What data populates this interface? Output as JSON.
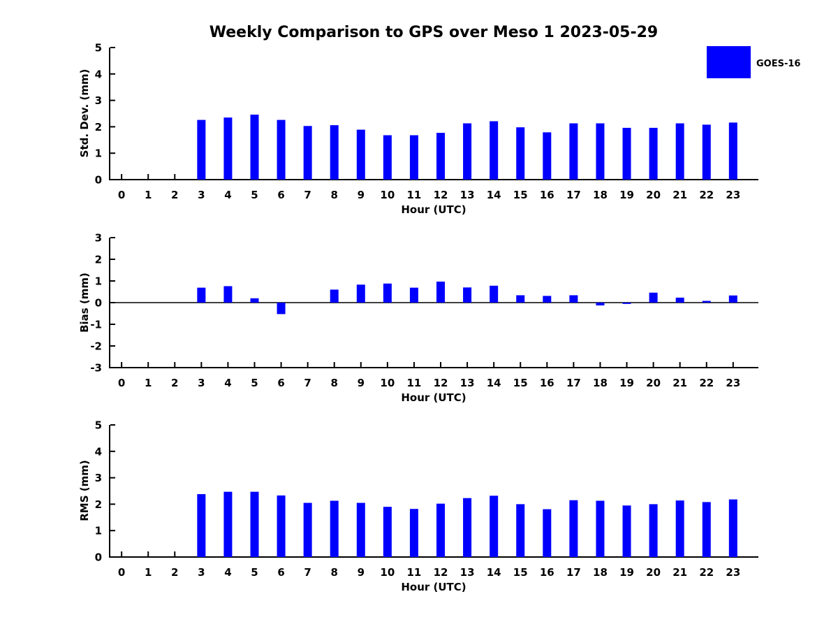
{
  "title": "Weekly Comparison to GPS over Meso 1 2023-05-29",
  "legend": {
    "label": "GOES-16",
    "color": "#0000ff"
  },
  "chart_data": [
    {
      "type": "bar",
      "name": "std-dev-by-hour",
      "series": "GOES-16",
      "bar_color": "#0000ff",
      "ylabel": "Std. Dev. (mm)",
      "xlabel": "Hour (UTC)",
      "ylim": [
        0,
        5
      ],
      "yticks": [
        0,
        1,
        2,
        3,
        4,
        5
      ],
      "hours": [
        0,
        1,
        2,
        3,
        4,
        5,
        6,
        7,
        8,
        9,
        10,
        11,
        12,
        13,
        14,
        15,
        16,
        17,
        18,
        19,
        20,
        21,
        22,
        23
      ],
      "values": [
        null,
        null,
        null,
        2.26,
        2.35,
        2.46,
        2.26,
        2.03,
        2.06,
        1.89,
        1.68,
        1.68,
        1.77,
        2.13,
        2.21,
        1.98,
        1.79,
        2.13,
        2.13,
        1.96,
        1.96,
        2.13,
        2.08,
        2.16
      ]
    },
    {
      "type": "bar",
      "name": "bias-by-hour",
      "series": "GOES-16",
      "bar_color": "#0000ff",
      "ylabel": "Bias (mm)",
      "xlabel": "Hour (UTC)",
      "ylim": [
        -3,
        3
      ],
      "yticks": [
        3,
        2,
        1,
        0,
        -1,
        -2,
        -3
      ],
      "hours": [
        0,
        1,
        2,
        3,
        4,
        5,
        6,
        7,
        8,
        9,
        10,
        11,
        12,
        13,
        14,
        15,
        16,
        17,
        18,
        19,
        20,
        21,
        22,
        23
      ],
      "values": [
        null,
        null,
        null,
        0.69,
        0.76,
        0.2,
        -0.53,
        0.0,
        0.6,
        0.83,
        0.88,
        0.69,
        0.97,
        0.7,
        0.78,
        0.34,
        0.31,
        0.34,
        -0.13,
        -0.06,
        0.46,
        0.23,
        0.08,
        0.33
      ]
    },
    {
      "type": "bar",
      "name": "rms-by-hour",
      "series": "GOES-16",
      "bar_color": "#0000ff",
      "ylabel": "RMS (mm)",
      "xlabel": "Hour (UTC)",
      "ylim": [
        0,
        5
      ],
      "yticks": [
        0,
        1,
        2,
        3,
        4,
        5
      ],
      "hours": [
        0,
        1,
        2,
        3,
        4,
        5,
        6,
        7,
        8,
        9,
        10,
        11,
        12,
        13,
        14,
        15,
        16,
        17,
        18,
        19,
        20,
        21,
        22,
        23
      ],
      "values": [
        null,
        null,
        null,
        2.38,
        2.47,
        2.47,
        2.33,
        2.05,
        2.13,
        2.05,
        1.9,
        1.82,
        2.02,
        2.23,
        2.32,
        2.0,
        1.81,
        2.15,
        2.13,
        1.95,
        2.0,
        2.14,
        2.08,
        2.18
      ]
    }
  ]
}
